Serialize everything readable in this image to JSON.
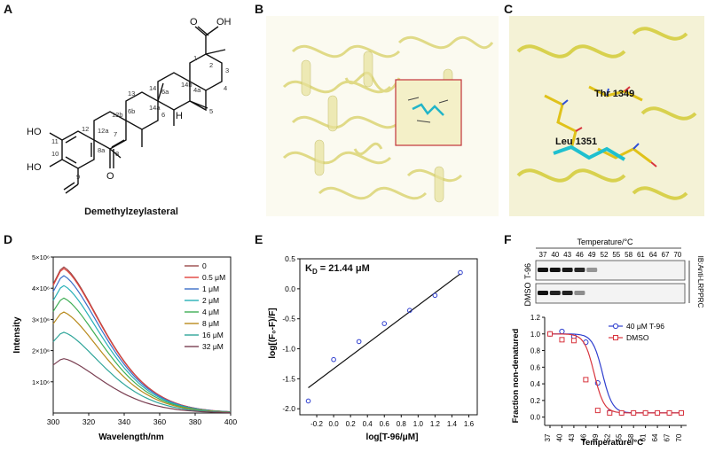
{
  "panel_labels": [
    "A",
    "B",
    "C",
    "D",
    "E",
    "F"
  ],
  "panelA": {
    "compound_name": "Demethylzeylasteral",
    "atoms": {
      "oh_top": "HO",
      "oh_bottom": "HO",
      "acid": "O",
      "acid_oh": "OH",
      "ketone_o": "O",
      "h14b": "H"
    },
    "numbers": [
      "1",
      "2",
      "3",
      "4",
      "4a",
      "5",
      "6",
      "6a",
      "6b",
      "7",
      "8",
      "8a",
      "9",
      "10",
      "11",
      "12",
      "12a",
      "12b",
      "13",
      "14",
      "14a",
      "14b"
    ]
  },
  "panelC": {
    "residues": [
      "Thr 1349",
      "Leu 1351"
    ]
  },
  "panelD": {
    "chart_data": {
      "type": "line",
      "xlabel": "Wavelength/nm",
      "ylabel": "Intensity",
      "xlim": [
        300,
        400
      ],
      "ylim": [
        0,
        5000000
      ],
      "xticks": [
        "300",
        "320",
        "340",
        "360",
        "380",
        "400"
      ],
      "yticks": [
        "1×10⁶",
        "2×10⁶",
        "3×10⁶",
        "4×10⁶",
        "5×10⁶"
      ],
      "legend_position": "top-right",
      "series": [
        {
          "name": "0",
          "color": "#9a4a4a",
          "peak": 4700000
        },
        {
          "name": "0.5 μM",
          "color": "#e0433c",
          "peak": 4650000
        },
        {
          "name": "1 μM",
          "color": "#3a6ec8",
          "peak": 4420000
        },
        {
          "name": "2 μM",
          "color": "#27b0b7",
          "peak": 4100000
        },
        {
          "name": "4 μM",
          "color": "#3fae55",
          "peak": 3700000
        },
        {
          "name": "8 μM",
          "color": "#b88a1c",
          "peak": 3250000
        },
        {
          "name": "16 μM",
          "color": "#2fa59a",
          "peak": 2600000
        },
        {
          "name": "32 μM",
          "color": "#7a3f52",
          "peak": 1750000
        }
      ]
    }
  },
  "panelE": {
    "annotation": "K",
    "annotation_sub": "D",
    "annotation_value": " = 21.44 μM",
    "chart_data": {
      "type": "scatter",
      "xlabel": "log[T-96/μM]",
      "ylabel": "log[(F₀-F)/F]",
      "xlim": [
        -0.4,
        1.7
      ],
      "ylim": [
        -2.1,
        0.5
      ],
      "xticks": [
        "-0.2",
        "0.0",
        "0.2",
        "0.4",
        "0.6",
        "0.8",
        "1.0",
        "1.2",
        "1.4",
        "1.6"
      ],
      "yticks": [
        "-2.0",
        "-1.5",
        "-1.0",
        "-0.5",
        "0.0",
        "0.5"
      ],
      "x": [
        -0.3,
        0.0,
        0.3,
        0.6,
        0.9,
        1.2,
        1.5
      ],
      "y": [
        -1.87,
        -1.18,
        -0.88,
        -0.58,
        -0.36,
        -0.11,
        0.27
      ],
      "fit": {
        "x": [
          -0.3,
          1.5
        ],
        "y": [
          -1.65,
          0.25
        ]
      }
    }
  },
  "panelF": {
    "blot_title": "Temperature/°C",
    "temps": [
      "37",
      "40",
      "43",
      "46",
      "49",
      "52",
      "55",
      "58",
      "61",
      "64",
      "67",
      "70"
    ],
    "rows": [
      "T-96",
      "DMSO"
    ],
    "antibody": "IB:Anti-LRPPRC",
    "chart_data": {
      "type": "line",
      "xlabel": "Temperature/°C",
      "ylabel": "Fraction non-denatured",
      "categories": [
        "37",
        "40",
        "43",
        "46",
        "49",
        "52",
        "55",
        "58",
        "61",
        "64",
        "67",
        "70"
      ],
      "ylim": [
        -0.1,
        1.2
      ],
      "yticks": [
        "0.0",
        "0.2",
        "0.4",
        "0.6",
        "0.8",
        "1.0",
        "1.2"
      ],
      "legend_position": "top-right",
      "series": [
        {
          "name": "40 μM T-96",
          "color": "#2f3fcf",
          "marker": "circle",
          "values": [
            1.0,
            1.03,
            0.97,
            0.9,
            0.41,
            0.06,
            0.05,
            0.05,
            0.05,
            0.05,
            0.05,
            0.05
          ]
        },
        {
          "name": "DMSO",
          "color": "#d8343d",
          "marker": "square",
          "values": [
            1.0,
            0.93,
            0.92,
            0.45,
            0.08,
            0.05,
            0.05,
            0.05,
            0.05,
            0.05,
            0.05,
            0.05
          ]
        }
      ]
    }
  }
}
